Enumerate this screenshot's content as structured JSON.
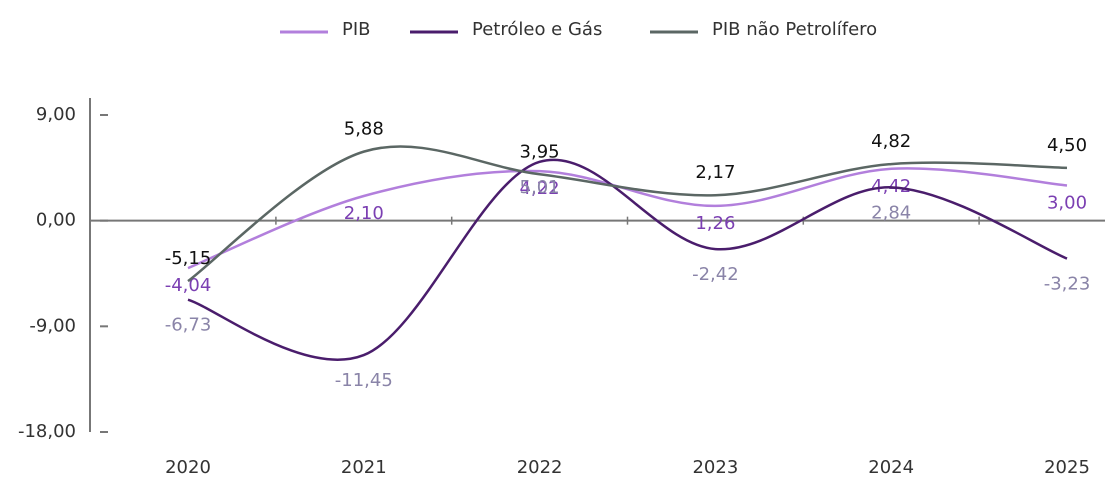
{
  "chart_data": {
    "type": "line",
    "categories": [
      "2020",
      "2021",
      "2022",
      "2023",
      "2024",
      "2025"
    ],
    "series": [
      {
        "name": "PIB",
        "color": "#b27fdc",
        "label_color": "#7b3fb2",
        "values": [
          -4.04,
          2.1,
          4.22,
          1.26,
          4.42,
          3.0
        ],
        "value_labels": [
          "-4,04",
          "2,10",
          "4,22",
          "1,26",
          "4,42",
          "3,00"
        ]
      },
      {
        "name": "Petróleo e Gás",
        "color": "#4a1d6c",
        "label_color": "#8a84a8",
        "values": [
          -6.73,
          -11.45,
          5.01,
          -2.42,
          2.84,
          -3.23
        ],
        "value_labels": [
          "-6,73",
          "-11,45",
          "5,01",
          "-2,42",
          "2,84",
          "-3,23"
        ]
      },
      {
        "name": "PIB não Petrolífero",
        "color": "#5b6764",
        "label_color": "#111111",
        "values": [
          -5.15,
          5.88,
          3.95,
          2.17,
          4.82,
          4.5
        ],
        "value_labels": [
          "-5,15",
          "5,88",
          "3,95",
          "2,17",
          "4,82",
          "4,50"
        ]
      }
    ],
    "ylim": [
      -18,
      9
    ],
    "yticks": [
      {
        "value": -18,
        "label": "-18,00"
      },
      {
        "value": -9,
        "label": "-9,00"
      },
      {
        "value": 0,
        "label": "0,00"
      },
      {
        "value": 9,
        "label": "9,00"
      }
    ]
  }
}
